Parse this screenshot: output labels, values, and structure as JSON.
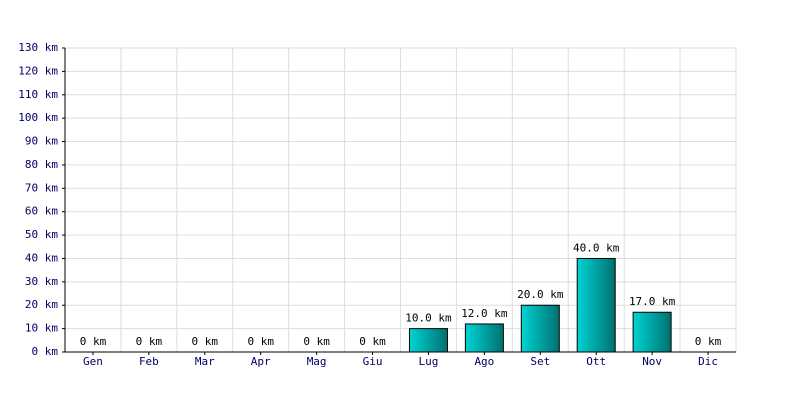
{
  "chart_data": {
    "type": "bar",
    "categories": [
      "Gen",
      "Feb",
      "Mar",
      "Apr",
      "Mag",
      "Giu",
      "Lug",
      "Ago",
      "Set",
      "Ott",
      "Nov",
      "Dic"
    ],
    "values": [
      0,
      0,
      0,
      0,
      0,
      0,
      10,
      12,
      20,
      40,
      17,
      0
    ],
    "value_labels": [
      "0 km",
      "0 km",
      "0 km",
      "0 km",
      "0 km",
      "0 km",
      "10.0 km",
      "12.0 km",
      "20.0 km",
      "40.0 km",
      "17.0 km",
      "0 km"
    ],
    "color": "#00d4d4",
    "ylim": [
      0,
      130
    ],
    "yticks": [
      {
        "value": 0,
        "label": "0 km"
      },
      {
        "value": 10,
        "label": "10 km"
      },
      {
        "value": 20,
        "label": "20 km"
      },
      {
        "value": 30,
        "label": "30 km"
      },
      {
        "value": 40,
        "label": "40 km"
      },
      {
        "value": 50,
        "label": "50 km"
      },
      {
        "value": 60,
        "label": "60 km"
      },
      {
        "value": 70,
        "label": "70 km"
      },
      {
        "value": 80,
        "label": "80 km"
      },
      {
        "value": 90,
        "label": "90 km"
      },
      {
        "value": 100,
        "label": "100 km"
      },
      {
        "value": 110,
        "label": "110 km"
      },
      {
        "value": 120,
        "label": "120 km"
      },
      {
        "value": 130,
        "label": "130 km"
      }
    ],
    "grid": true
  }
}
